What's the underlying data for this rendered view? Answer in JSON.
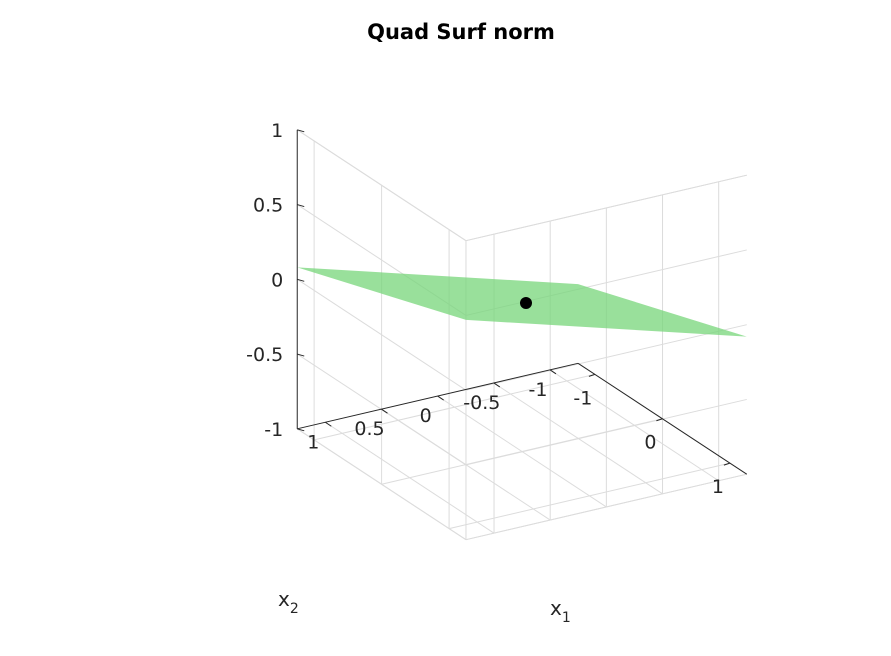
{
  "chart_data": {
    "type": "surface3d",
    "title": "Quad Surf norm",
    "xlabel": "x",
    "xlabel_sub": "1",
    "ylabel": "x",
    "ylabel_sub": "2",
    "zlabel": "",
    "xlim": [
      -1.25,
      1.25
    ],
    "ylim": [
      -1.25,
      1.25
    ],
    "zlim": [
      -1,
      1
    ],
    "x_ticks": [
      -1,
      0,
      1
    ],
    "x_tick_labels": [
      "-1",
      "0",
      "1"
    ],
    "y_ticks": [
      -1,
      -0.5,
      0,
      0.5,
      1
    ],
    "y_tick_labels": [
      "-1",
      "-0.5",
      "0",
      "0.5",
      "1"
    ],
    "z_ticks": [
      -1,
      -0.5,
      0,
      0.5,
      1
    ],
    "z_tick_labels": [
      "-1",
      "-0.5",
      "0",
      "0.5",
      "1"
    ],
    "grid": true,
    "surface": {
      "corners": [
        {
          "x": -1.25,
          "y": -1.25,
          "z": -0.47
        },
        {
          "x": 1.25,
          "y": -1.25,
          "z": -0.08
        },
        {
          "x": 1.25,
          "y": 1.25,
          "z": 0.47
        },
        {
          "x": -1.25,
          "y": 1.25,
          "z": 0.08
        }
      ],
      "color": "#77d57a",
      "opacity": 0.75
    },
    "points": [
      {
        "x": 0.0,
        "y": 0.0,
        "z": 0.0,
        "color": "#000000"
      }
    ]
  }
}
